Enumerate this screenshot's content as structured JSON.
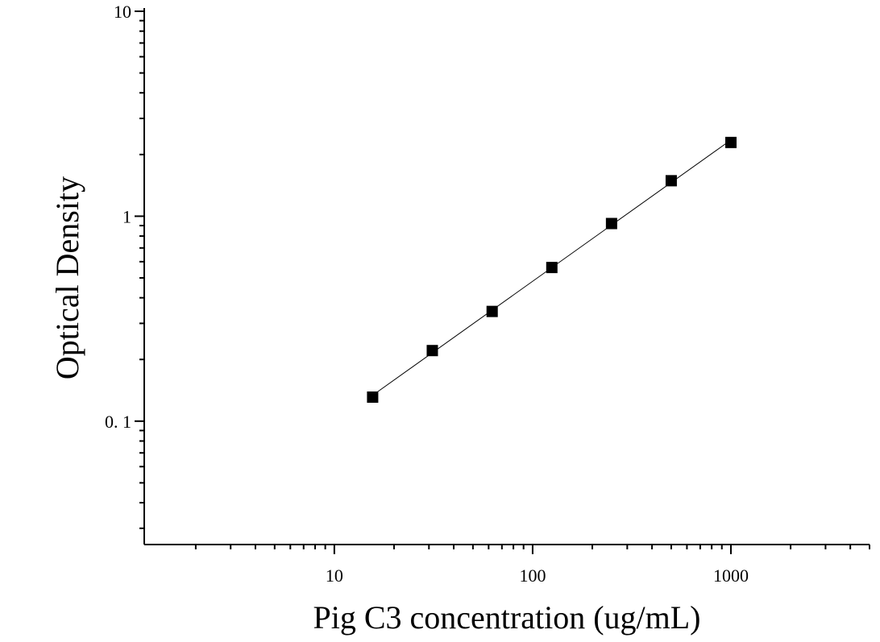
{
  "chart_data": {
    "type": "scatter",
    "title": "",
    "xlabel": "Pig C3 concentration (ug/mL)",
    "ylabel": "Optical Density",
    "x_scale": "log",
    "y_scale": "log",
    "xlim": [
      1.1,
      5000
    ],
    "ylim": [
      0.025,
      10
    ],
    "x_ticks": [
      {
        "value": 10,
        "label": "10"
      },
      {
        "value": 100,
        "label": "100"
      },
      {
        "value": 1000,
        "label": "1000"
      }
    ],
    "y_ticks": [
      {
        "value": 0.1,
        "label": "0. 1"
      },
      {
        "value": 1,
        "label": "1"
      },
      {
        "value": 10,
        "label": "10"
      }
    ],
    "grid": false,
    "legend": "none",
    "series": [
      {
        "marker": "square",
        "color": "#000000",
        "fit_line": true,
        "x": [
          15.6,
          31.2,
          62.5,
          125,
          250,
          500,
          1000
        ],
        "y": [
          0.131,
          0.221,
          0.343,
          0.562,
          0.921,
          1.49,
          2.29
        ]
      }
    ]
  }
}
